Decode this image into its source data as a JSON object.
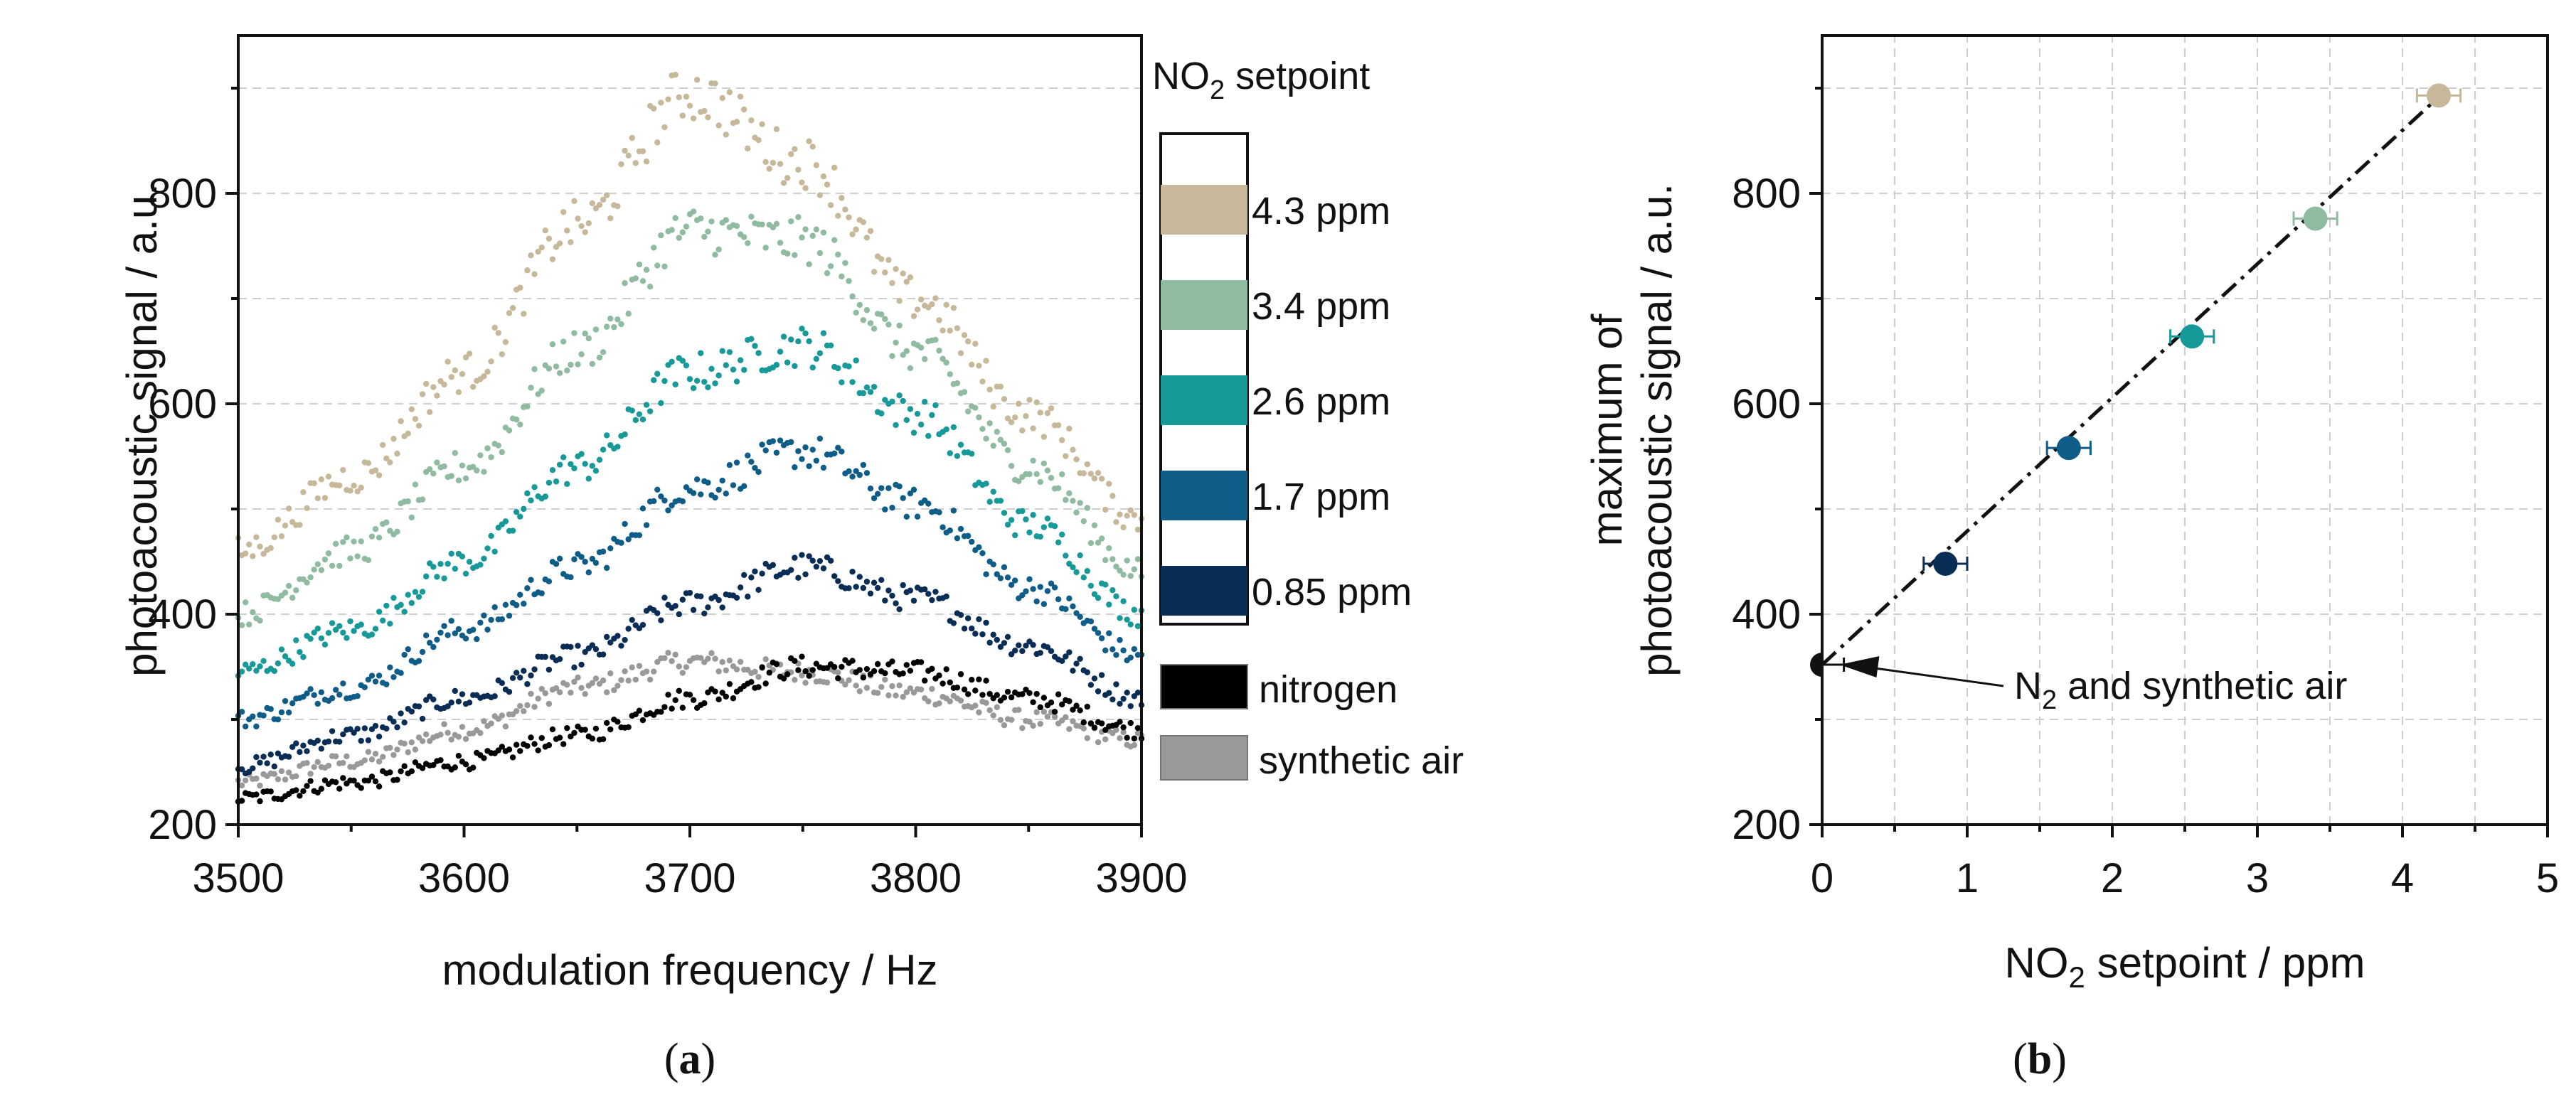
{
  "chart_data": [
    {
      "panel": "(a)",
      "type": "scatter",
      "xlabel": "modulation frequency / Hz",
      "ylabel": "photoacoustic signal / a.u.",
      "xlim": [
        3500,
        3900
      ],
      "ylim": [
        200,
        950
      ],
      "xticks": [
        3500,
        3600,
        3700,
        3800,
        3900
      ],
      "yticks": [
        200,
        400,
        600,
        800
      ],
      "grid": "horizontal dashed",
      "legend": {
        "title_main": "NO",
        "title_sub": "2",
        "title_rest": " setpoint",
        "placement": "right",
        "items": [
          {
            "label": "4.3 ppm",
            "color": "#c8b89a"
          },
          {
            "label": "3.4 ppm",
            "color": "#8fbba0"
          },
          {
            "label": "2.6 ppm",
            "color": "#17999a"
          },
          {
            "label": "1.7 ppm",
            "color": "#0e5c88"
          },
          {
            "label": "0.85 ppm",
            "color": "#0a2d55"
          },
          {
            "label": "nitrogen",
            "color": "#000000"
          },
          {
            "label": "synthetic air",
            "color": "#999999"
          }
        ]
      },
      "series": [
        {
          "name": "4.3 ppm",
          "color": "#c8b89a",
          "x": [
            3500,
            3550,
            3600,
            3650,
            3700,
            3750,
            3800,
            3850,
            3900
          ],
          "y": [
            460,
            530,
            630,
            770,
            895,
            830,
            700,
            590,
            490
          ]
        },
        {
          "name": "3.4 ppm",
          "color": "#8fbba0",
          "x": [
            3500,
            3550,
            3600,
            3650,
            3700,
            3750,
            3800,
            3850,
            3900
          ],
          "y": [
            400,
            460,
            540,
            650,
            765,
            755,
            650,
            540,
            440
          ]
        },
        {
          "name": "2.6 ppm",
          "color": "#17999a",
          "x": [
            3500,
            3550,
            3600,
            3650,
            3700,
            3750,
            3800,
            3850,
            3900
          ],
          "y": [
            345,
            385,
            450,
            540,
            630,
            655,
            590,
            485,
            400
          ]
        },
        {
          "name": "1.7 ppm",
          "color": "#0e5c88",
          "x": [
            3500,
            3550,
            3600,
            3650,
            3700,
            3750,
            3800,
            3850,
            3900
          ],
          "y": [
            300,
            330,
            385,
            445,
            520,
            555,
            505,
            425,
            360
          ]
        },
        {
          "name": "0.85 ppm",
          "color": "#0a2d55",
          "x": [
            3500,
            3550,
            3600,
            3650,
            3700,
            3750,
            3800,
            3850,
            3900
          ],
          "y": [
            255,
            285,
            320,
            360,
            410,
            445,
            415,
            370,
            320
          ]
        },
        {
          "name": "nitrogen",
          "color": "#000000",
          "x": [
            3500,
            3550,
            3600,
            3650,
            3700,
            3750,
            3800,
            3850,
            3900
          ],
          "y": [
            225,
            240,
            260,
            285,
            320,
            350,
            345,
            320,
            290
          ]
        },
        {
          "name": "synthetic air",
          "color": "#999999",
          "x": [
            3500,
            3550,
            3600,
            3650,
            3700,
            3750,
            3800,
            3850,
            3900
          ],
          "y": [
            240,
            260,
            290,
            330,
            355,
            345,
            325,
            300,
            280
          ]
        }
      ]
    },
    {
      "panel": "(b)",
      "type": "scatter",
      "xlabel_main": "NO",
      "xlabel_sub": "2",
      "xlabel_rest": " setpoint / ppm",
      "ylabel_line1": "maximum of",
      "ylabel_line2": "photoacoustic signal / a.u.",
      "xlim": [
        0,
        5
      ],
      "ylim": [
        200,
        950
      ],
      "xticks": [
        0,
        1,
        2,
        3,
        4,
        5
      ],
      "yticks": [
        200,
        400,
        600,
        800
      ],
      "grid": "dashed both",
      "points": [
        {
          "x": 0,
          "y": 352,
          "xerr": 0.15,
          "color": "#111111"
        },
        {
          "x": 0.85,
          "y": 448,
          "xerr": 0.15,
          "color": "#0a2d55"
        },
        {
          "x": 1.7,
          "y": 558,
          "xerr": 0.15,
          "color": "#0e5c88"
        },
        {
          "x": 2.55,
          "y": 664,
          "xerr": 0.15,
          "color": "#17999a"
        },
        {
          "x": 3.4,
          "y": 776,
          "xerr": 0.15,
          "color": "#8fbba0"
        },
        {
          "x": 4.25,
          "y": 893,
          "xerr": 0.15,
          "color": "#c8b89a"
        }
      ],
      "fit_line": {
        "x": [
          0,
          4.3
        ],
        "y": [
          352,
          898
        ],
        "style": "dash-dot"
      },
      "annotation": {
        "text_main": "N",
        "text_sub": "2",
        "text_rest": " and synthetic air",
        "target_x": 0.1,
        "target_y": 352
      }
    }
  ],
  "captions": {
    "a": "(a)",
    "b": "(b)"
  }
}
